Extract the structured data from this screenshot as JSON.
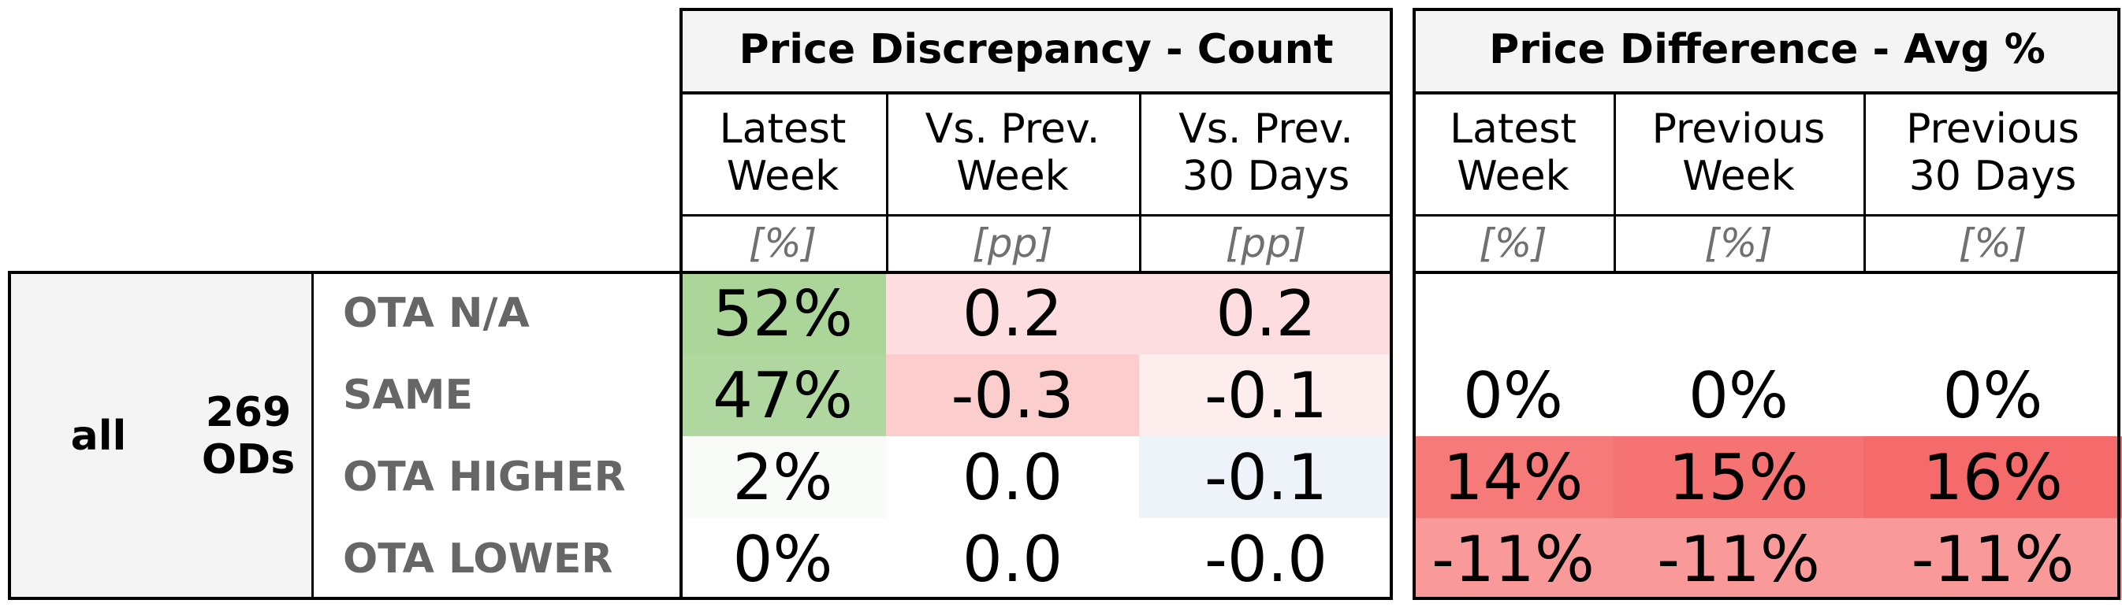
{
  "chart_data": {
    "type": "table",
    "segment": "all",
    "count_value": "269",
    "count_unit": "ODs",
    "groups": [
      {
        "title": "Price Discrepancy - Count",
        "columns": [
          {
            "label": "Latest\nWeek",
            "unit": "[%]"
          },
          {
            "label": "Vs. Prev.\nWeek",
            "unit": "[pp]"
          },
          {
            "label": "Vs. Prev.\n30 Days",
            "unit": "[pp]"
          }
        ]
      },
      {
        "title": "Price Difference - Avg %",
        "columns": [
          {
            "label": "Latest\nWeek",
            "unit": "[%]"
          },
          {
            "label": "Previous\nWeek",
            "unit": "[%]"
          },
          {
            "label": "Previous\n30 Days",
            "unit": "[%]"
          }
        ]
      }
    ],
    "rows": [
      {
        "label": "OTA N/A",
        "cells": [
          {
            "value": "52%",
            "color": "#acd59a"
          },
          {
            "value": "0.2",
            "color": "#fddde0"
          },
          {
            "value": "0.2",
            "color": "#fddde0"
          },
          {
            "value": "",
            "color": "#ffffff"
          },
          {
            "value": "",
            "color": "#ffffff"
          },
          {
            "value": "",
            "color": "#ffffff"
          }
        ]
      },
      {
        "label": "SAME",
        "cells": [
          {
            "value": "47%",
            "color": "#b0d79f"
          },
          {
            "value": "-0.3",
            "color": "#fbcdcd"
          },
          {
            "value": "-0.1",
            "color": "#fdeded"
          },
          {
            "value": "0%",
            "color": "#ffffff"
          },
          {
            "value": "0%",
            "color": "#ffffff"
          },
          {
            "value": "0%",
            "color": "#ffffff"
          }
        ]
      },
      {
        "label": "OTA HIGHER",
        "cells": [
          {
            "value": "2%",
            "color": "#f9fbf8"
          },
          {
            "value": "0.0",
            "color": "#ffffff"
          },
          {
            "value": "-0.1",
            "color": "#eef2f9"
          },
          {
            "value": "14%",
            "color": "#f77a7a"
          },
          {
            "value": "15%",
            "color": "#f67373"
          },
          {
            "value": "16%",
            "color": "#f56a6a"
          }
        ]
      },
      {
        "label": "OTA LOWER",
        "cells": [
          {
            "value": "0%",
            "color": "#ffffff"
          },
          {
            "value": "0.0",
            "color": "#ffffff"
          },
          {
            "value": "-0.0",
            "color": "#ffffff"
          },
          {
            "value": "-11%",
            "color": "#f99999"
          },
          {
            "value": "-11%",
            "color": "#f99999"
          },
          {
            "value": "-11%",
            "color": "#f99999"
          }
        ]
      }
    ]
  }
}
